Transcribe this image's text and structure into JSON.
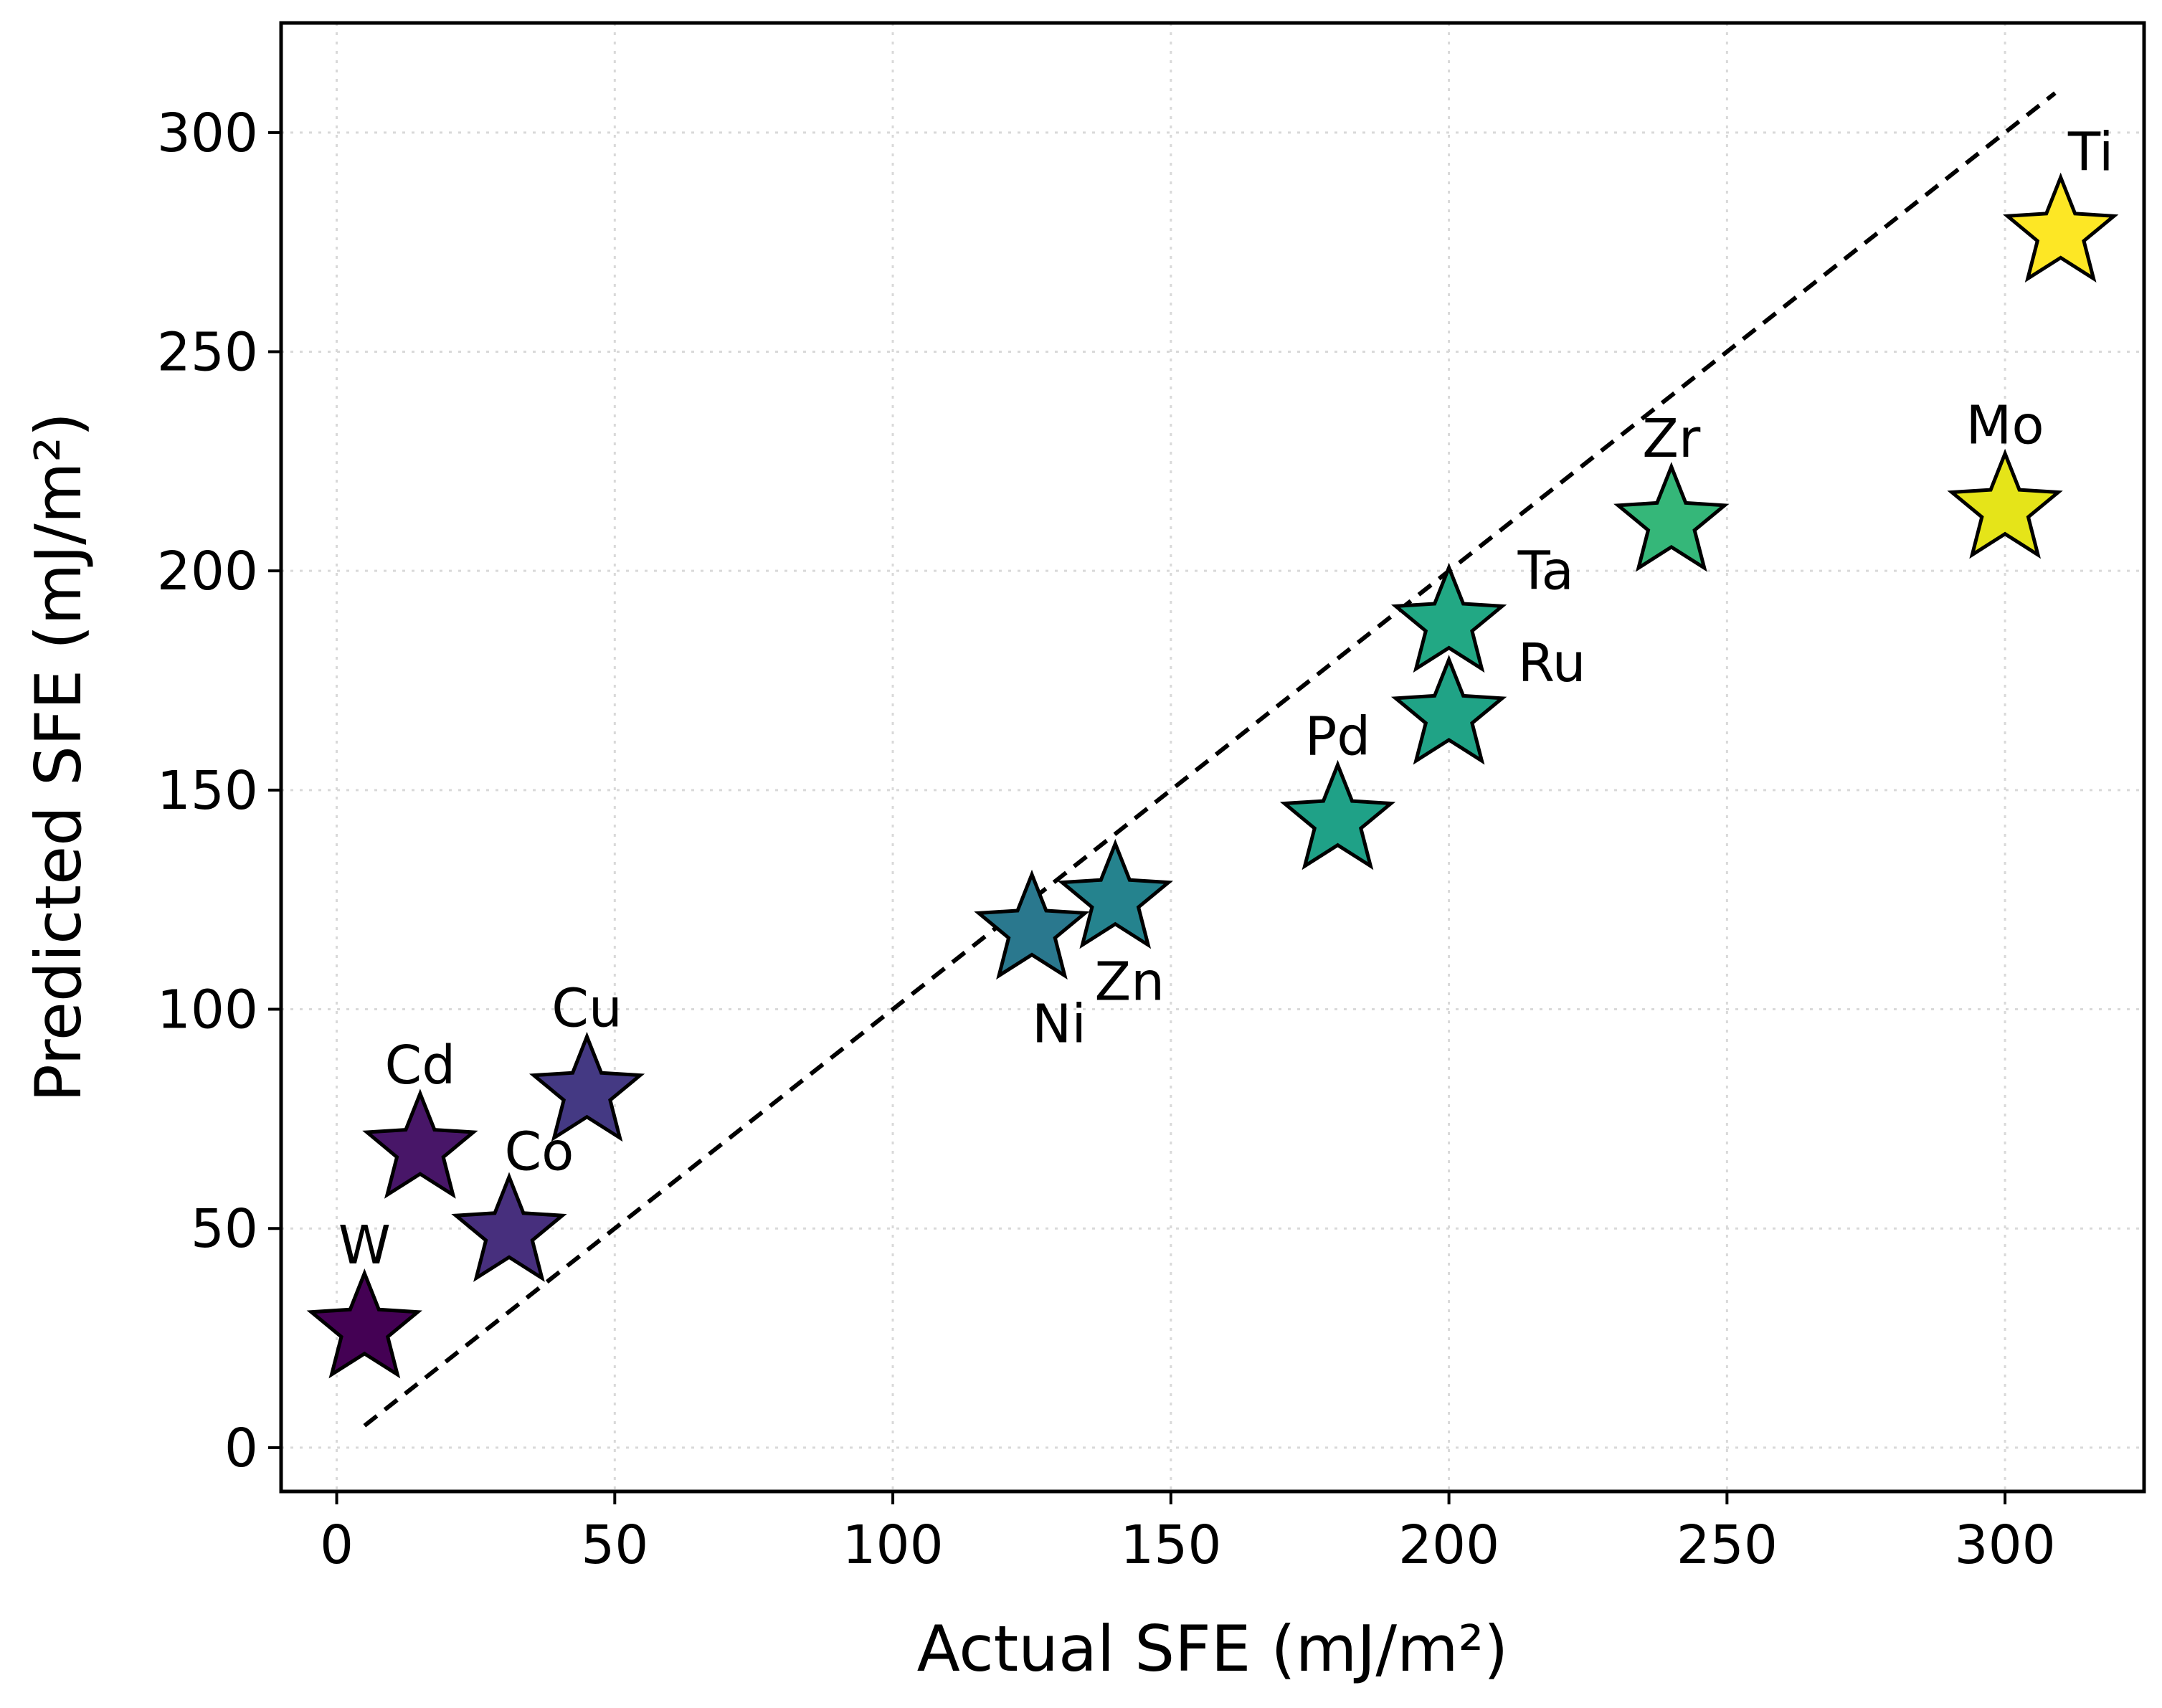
{
  "chart_data": {
    "type": "scatter",
    "title": "",
    "xlabel": "Actual SFE (mJ/m²)",
    "ylabel": "Predicted SFE (mJ/m²)",
    "xlim": [
      -10,
      325
    ],
    "ylim": [
      -10,
      325
    ],
    "xticks": [
      0,
      50,
      100,
      150,
      200,
      250,
      300
    ],
    "yticks": [
      0,
      50,
      100,
      150,
      200,
      250,
      300
    ],
    "grid": true,
    "marker": "star",
    "reference_line": {
      "style": "dashed",
      "x": [
        5,
        309
      ],
      "y": [
        5,
        309
      ]
    },
    "points": [
      {
        "label": "W",
        "x": 5,
        "y": 27,
        "color": "#440154",
        "label_pos": "above"
      },
      {
        "label": "Cd",
        "x": 15,
        "y": 68,
        "color": "#481668",
        "label_pos": "above"
      },
      {
        "label": "Co",
        "x": 31,
        "y": 49,
        "color": "#472f7d",
        "label_pos": "above-right"
      },
      {
        "label": "Cu",
        "x": 45,
        "y": 81,
        "color": "#443983",
        "label_pos": "above"
      },
      {
        "label": "Ni",
        "x": 125,
        "y": 118,
        "color": "#2a788e",
        "label_pos": "below-right"
      },
      {
        "label": "Zn",
        "x": 140,
        "y": 125,
        "color": "#25838e",
        "label_pos": "below"
      },
      {
        "label": "Pd",
        "x": 180,
        "y": 143,
        "color": "#1fa187",
        "label_pos": "above"
      },
      {
        "label": "Ru",
        "x": 200,
        "y": 167,
        "color": "#20a386",
        "label_pos": "right"
      },
      {
        "label": "Ta",
        "x": 200,
        "y": 188,
        "color": "#22a884",
        "label_pos": "right"
      },
      {
        "label": "Zr",
        "x": 240,
        "y": 211,
        "color": "#35b779",
        "label_pos": "above"
      },
      {
        "label": "Mo",
        "x": 300,
        "y": 214,
        "color": "#e5e419",
        "label_pos": "above"
      },
      {
        "label": "Ti",
        "x": 310,
        "y": 277,
        "color": "#fde725",
        "label_pos": "above-right"
      }
    ]
  }
}
